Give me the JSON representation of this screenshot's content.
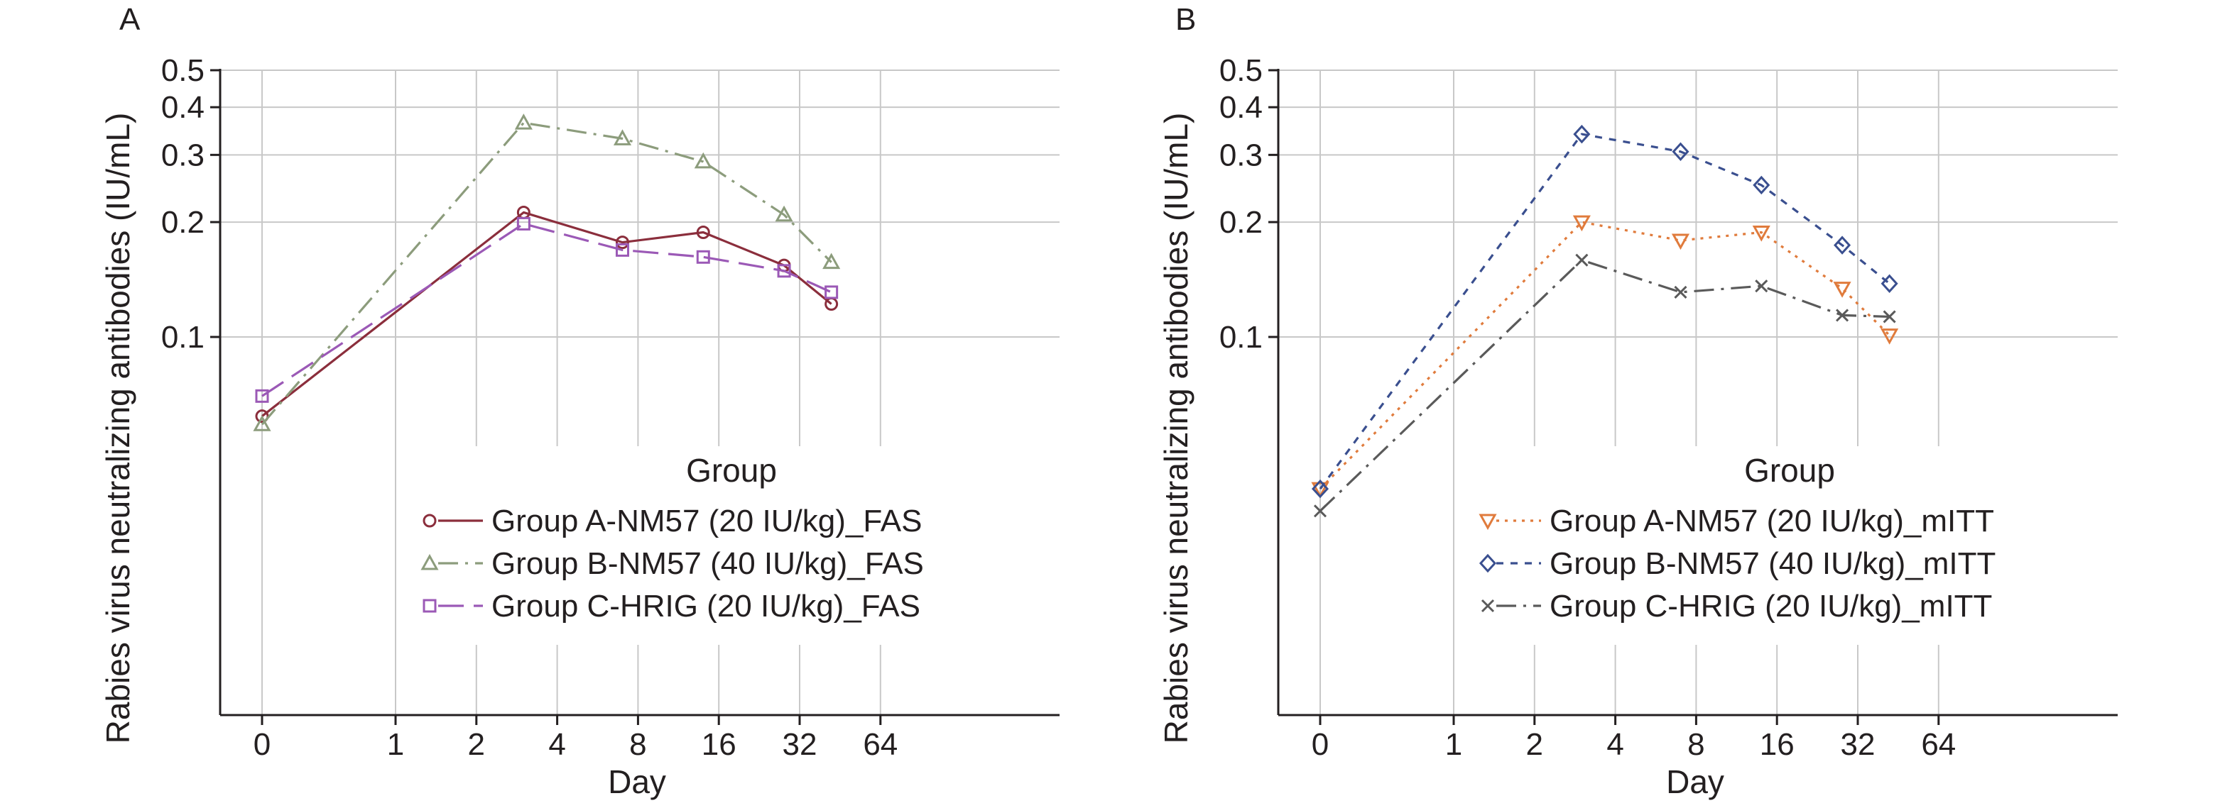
{
  "chart_data": [
    {
      "panel": "A",
      "type": "line",
      "xlabel": "Day",
      "ylabel": "Rabies virus neutralizing antibodies (IU/mL)",
      "x_scale": "log2 (0 shown at left)",
      "y_scale": "log",
      "x_ticks": [
        "0",
        "1",
        "2",
        "4",
        "8",
        "16",
        "32",
        "64"
      ],
      "y_ticks": [
        "0.1",
        "0.2",
        "0.3",
        "0.4",
        "0.5"
      ],
      "grid": true,
      "legend": {
        "title": "Group",
        "position": "lower-right"
      },
      "series": [
        {
          "name": "Group A-NM57 (20 IU/kg)_FAS",
          "color": "#8b2e3c",
          "marker": "circle",
          "dash": "solid",
          "x": [
            0,
            3,
            7,
            14,
            28,
            42
          ],
          "y": [
            0.062,
            0.212,
            0.177,
            0.188,
            0.154,
            0.122
          ]
        },
        {
          "name": "Group B-NM57 (40 IU/kg)_FAS",
          "color": "#8c9c7c",
          "marker": "triangle",
          "dash": "dash-dot",
          "x": [
            0,
            3,
            7,
            14,
            28,
            42
          ],
          "y": [
            0.059,
            0.364,
            0.331,
            0.288,
            0.209,
            0.157
          ]
        },
        {
          "name": "Group C-HRIG (20 IU/kg)_FAS",
          "color": "#9b59b6",
          "marker": "square",
          "dash": "long-dash",
          "x": [
            0,
            3,
            7,
            14,
            28,
            42
          ],
          "y": [
            0.07,
            0.198,
            0.169,
            0.162,
            0.149,
            0.131
          ]
        }
      ]
    },
    {
      "panel": "B",
      "type": "line",
      "xlabel": "Day",
      "ylabel": "Rabies virus neutralizing antibodies (IU/mL)",
      "x_scale": "log2 (0 shown at left)",
      "y_scale": "log",
      "x_ticks": [
        "0",
        "1",
        "2",
        "4",
        "8",
        "16",
        "32",
        "64"
      ],
      "y_ticks": [
        "0.1",
        "0.2",
        "0.3",
        "0.4",
        "0.5"
      ],
      "grid": true,
      "legend": {
        "title": "Group",
        "position": "lower-right"
      },
      "series": [
        {
          "name": "Group A-NM57 (20 IU/kg)_mITT",
          "color": "#e07b3c",
          "marker": "triangle-down",
          "dash": "dotted",
          "x": [
            0,
            3,
            7,
            14,
            28,
            42
          ],
          "y": [
            0.04,
            0.2,
            0.179,
            0.188,
            0.134,
            0.101
          ]
        },
        {
          "name": "Group B-NM57 (40 IU/kg)_mITT",
          "color": "#3a4f8f",
          "marker": "diamond",
          "dash": "dashed",
          "x": [
            0,
            3,
            7,
            14,
            28,
            42
          ],
          "y": [
            0.04,
            0.34,
            0.306,
            0.25,
            0.174,
            0.138
          ]
        },
        {
          "name": "Group C-HRIG (20 IU/kg)_mITT",
          "color": "#5a5a5a",
          "marker": "x",
          "dash": "dash-dot",
          "x": [
            0,
            3,
            7,
            14,
            28,
            42
          ],
          "y": [
            0.035,
            0.159,
            0.131,
            0.136,
            0.114,
            0.113
          ]
        }
      ]
    }
  ]
}
